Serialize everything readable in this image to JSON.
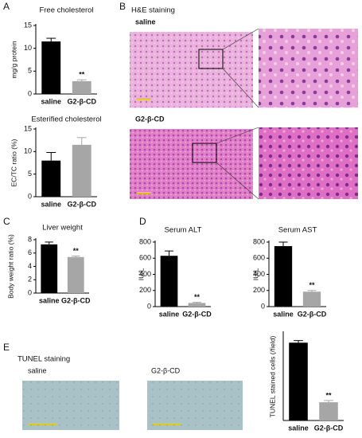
{
  "chart_data": [
    {
      "type": "bar",
      "title": "Free cholesterol",
      "y_label": "mg/g protein",
      "categories": [
        "saline",
        "G2-β-CD"
      ],
      "values": [
        11.5,
        2.8
      ],
      "errors": [
        0.7,
        0.3
      ],
      "significance": [
        null,
        "**"
      ],
      "colors": [
        "#000000",
        "#a6a6a6"
      ],
      "ylim": [
        0,
        15
      ],
      "yticks": [
        0,
        5,
        10,
        15
      ]
    },
    {
      "type": "bar",
      "title": "Esterified cholesterol",
      "y_label": "EC/TC ratio (%)",
      "categories": [
        "saline",
        "G2-β-CD"
      ],
      "values": [
        8,
        11.5
      ],
      "errors": [
        1.8,
        1.6
      ],
      "significance": [
        null,
        null
      ],
      "colors": [
        "#000000",
        "#a6a6a6"
      ],
      "ylim": [
        0,
        15
      ],
      "yticks": [
        0,
        5,
        10,
        15
      ]
    },
    {
      "type": "bar",
      "title": "Liver weight",
      "y_label": "Body weight ratio (%)",
      "categories": [
        "saline",
        "G2-β-CD"
      ],
      "values": [
        7.3,
        5.4
      ],
      "errors": [
        0.35,
        0.15
      ],
      "significance": [
        null,
        "**"
      ],
      "colors": [
        "#000000",
        "#a6a6a6"
      ],
      "ylim": [
        0,
        8
      ],
      "yticks": [
        0,
        2,
        4,
        6,
        8
      ]
    },
    {
      "type": "bar",
      "title": "Serum ALT",
      "y_label": "IU/L",
      "categories": [
        "saline",
        "G2-β-CD"
      ],
      "values": [
        630,
        45
      ],
      "errors": [
        60,
        8
      ],
      "significance": [
        null,
        "**"
      ],
      "colors": [
        "#000000",
        "#a6a6a6"
      ],
      "ylim": [
        0,
        800
      ],
      "yticks": [
        0,
        200,
        400,
        600,
        800
      ]
    },
    {
      "type": "bar",
      "title": "Serum AST",
      "y_label": "IU/L",
      "categories": [
        "saline",
        "G2-β-CD"
      ],
      "values": [
        750,
        185
      ],
      "errors": [
        50,
        15
      ],
      "significance": [
        null,
        "**"
      ],
      "colors": [
        "#000000",
        "#a6a6a6"
      ],
      "ylim": [
        0,
        800
      ],
      "yticks": [
        0,
        200,
        400,
        600,
        800
      ]
    },
    {
      "type": "bar",
      "y_label": "TUNEL stained cells (/field)",
      "categories": [
        "saline",
        "G2-β-CD"
      ],
      "values": [
        222,
        52
      ],
      "errors": [
        6,
        5
      ],
      "significance": [
        null,
        "**"
      ],
      "colors": [
        "#000000",
        "#a6a6a6"
      ],
      "ylim": [
        0,
        250
      ],
      "yticks": []
    }
  ],
  "figure": {
    "panel_labels": [
      "A",
      "B",
      "C",
      "D",
      "E"
    ],
    "he": {
      "title": "H&E staining",
      "rows": [
        "saline",
        "G2-β-CD"
      ]
    },
    "tunel": {
      "title": "TUNEL staining",
      "images": [
        "saline",
        "G2-β-CD"
      ]
    }
  }
}
